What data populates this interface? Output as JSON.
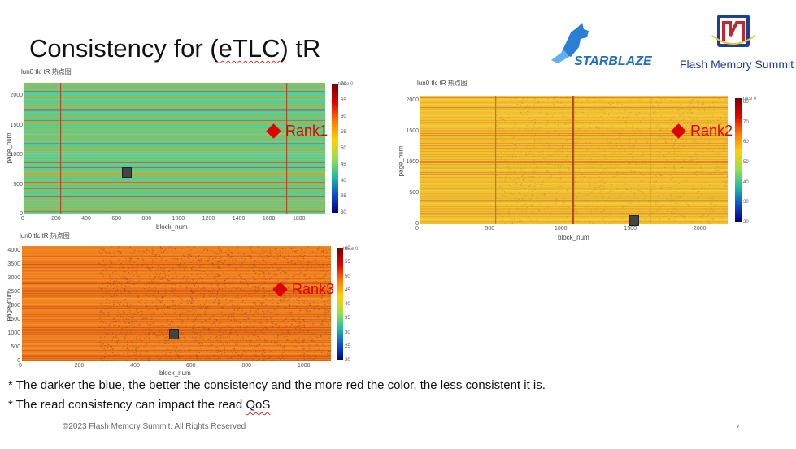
{
  "title": {
    "prefix": "Consistency for (",
    "acronym": "eTLC",
    "suffix": ") tR"
  },
  "logos": {
    "starblaze": "STARBLAZE",
    "fms": "Flash Memory Summit"
  },
  "charts": [
    {
      "heading": "lun0 tlc tR 热点图",
      "xlabel": "block_num",
      "ylabel": "page_num",
      "xticks": [
        "0",
        "200",
        "400",
        "600",
        "800",
        "1000",
        "1200",
        "1400",
        "1600",
        "1800"
      ],
      "yticks": [
        "2000",
        "1500",
        "1000",
        "500",
        "0"
      ],
      "trace": "trace 0",
      "colorbar_ticks": [
        "70",
        "65",
        "60",
        "55",
        "50",
        "45",
        "40",
        "35",
        "30"
      ],
      "rank": "Rank1"
    },
    {
      "heading": "lun0 tlc tR 热点图",
      "xlabel": "block_num",
      "ylabel": "page_num",
      "xticks": [
        "0",
        "500",
        "1000",
        "1500",
        "2000"
      ],
      "yticks": [
        "2000",
        "1500",
        "1000",
        "500",
        "0"
      ],
      "trace": "trace 0",
      "colorbar_ticks": [
        "80",
        "70",
        "60",
        "50",
        "40",
        "30",
        "20"
      ],
      "rank": "Rank2"
    },
    {
      "heading": "lun0 tlc tR 热点图",
      "xlabel": "block_num",
      "ylabel": "page_num",
      "xticks": [
        "0",
        "200",
        "400",
        "600",
        "800",
        "1000"
      ],
      "yticks": [
        "4000",
        "3500",
        "3000",
        "2500",
        "2000",
        "1500",
        "1000",
        "500",
        "0"
      ],
      "trace": "trace 0",
      "colorbar_ticks": [
        "60",
        "55",
        "50",
        "45",
        "40",
        "35",
        "30",
        "25",
        "20"
      ],
      "rank": "Rank3"
    }
  ],
  "notes": [
    "* The darker the blue, the better the consistency and the more red the color, the less consistent it is.",
    "* The read consistency can impact the read QoS"
  ],
  "footer": "©2023 Flash Memory Summit. All Rights Reserved",
  "page_number": "7",
  "colors": {
    "rank": "#e00000",
    "chart1_base": "#4fcf9a",
    "chart2_base": "#f2c232",
    "chart3_base": "#f07d1e"
  }
}
